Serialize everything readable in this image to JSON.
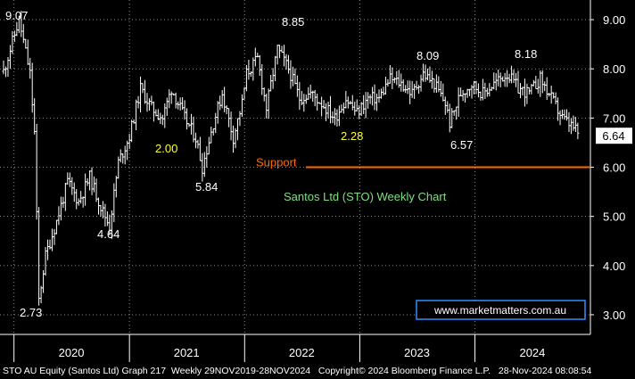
{
  "chart_data": {
    "type": "ohlc-bar",
    "title": "Santos Ltd (STO) Weekly Chart",
    "ylim": [
      2.6,
      9.4
    ],
    "y_ticks": [
      "3.00",
      "4.00",
      "5.00",
      "6.00",
      "7.00",
      "8.00",
      "9.00"
    ],
    "x_labels": [
      "2020",
      "2021",
      "2022",
      "2023",
      "2024"
    ],
    "last_price": "6.64",
    "support": {
      "label": "Support",
      "value": 6.0
    },
    "annotations": [
      {
        "label": "9.07",
        "value": 9.07,
        "date": "2020-01-17",
        "color": "#ffffff"
      },
      {
        "label": "2.73",
        "value": 2.73,
        "date": "2020-03-20",
        "color": "#ffffff"
      },
      {
        "label": "4.64",
        "value": 4.64,
        "date": "2020-10-30",
        "color": "#ffffff"
      },
      {
        "label": "2.00",
        "value": 2.0,
        "date": "2020-12-15",
        "color": "#ffff33"
      },
      {
        "label": "5.84",
        "value": 5.84,
        "date": "2021-08-20",
        "color": "#ffffff"
      },
      {
        "label": "8.85",
        "value": 8.85,
        "date": "2022-01-07",
        "color": "#ffffff"
      },
      {
        "label": "2.28",
        "value": 2.28,
        "date": "2022-10-15",
        "color": "#ffff33"
      },
      {
        "label": "8.09",
        "value": 8.09,
        "date": "2023-04-06",
        "color": "#ffffff"
      },
      {
        "label": "6.57",
        "value": 6.57,
        "date": "2023-10-13",
        "color": "#ffffff"
      },
      {
        "label": "8.18",
        "value": 8.18,
        "date": "2024-04-12",
        "color": "#ffffff"
      }
    ],
    "series": [
      {
        "values": [
          [
            "2019-11-29",
            7.95
          ],
          [
            "2020-01-17",
            9.0
          ],
          [
            "2020-02-21",
            7.9
          ],
          [
            "2020-03-06",
            6.7
          ],
          [
            "2020-03-20",
            3.3
          ],
          [
            "2020-04-10",
            4.2
          ],
          [
            "2020-05-15",
            4.9
          ],
          [
            "2020-06-19",
            5.7
          ],
          [
            "2020-07-24",
            5.3
          ],
          [
            "2020-08-28",
            5.8
          ],
          [
            "2020-10-02",
            5.2
          ],
          [
            "2020-10-30",
            4.8
          ],
          [
            "2020-11-27",
            6.1
          ],
          [
            "2020-12-31",
            6.6
          ],
          [
            "2021-02-05",
            7.6
          ],
          [
            "2021-03-12",
            7.2
          ],
          [
            "2021-04-16",
            7.0
          ],
          [
            "2021-05-14",
            7.6
          ],
          [
            "2021-06-25",
            7.0
          ],
          [
            "2021-07-30",
            6.6
          ],
          [
            "2021-08-20",
            6.0
          ],
          [
            "2021-09-24",
            6.9
          ],
          [
            "2021-10-22",
            7.5
          ],
          [
            "2021-11-26",
            6.6
          ],
          [
            "2021-12-24",
            7.3
          ],
          [
            "2022-01-07",
            7.9
          ],
          [
            "2022-02-11",
            8.2
          ],
          [
            "2022-03-11",
            7.2
          ],
          [
            "2022-04-15",
            8.4
          ],
          [
            "2022-05-20",
            8.0
          ],
          [
            "2022-06-24",
            7.4
          ],
          [
            "2022-07-29",
            7.5
          ],
          [
            "2022-09-02",
            7.3
          ],
          [
            "2022-10-14",
            7.0
          ],
          [
            "2022-11-18",
            7.4
          ],
          [
            "2022-12-23",
            7.1
          ],
          [
            "2023-01-27",
            7.4
          ],
          [
            "2023-03-03",
            7.4
          ],
          [
            "2023-04-06",
            7.8
          ],
          [
            "2023-05-12",
            7.7
          ],
          [
            "2023-06-16",
            7.5
          ],
          [
            "2023-07-21",
            7.9
          ],
          [
            "2023-08-25",
            7.7
          ],
          [
            "2023-09-29",
            7.3
          ],
          [
            "2023-10-13",
            6.9
          ],
          [
            "2023-11-17",
            7.5
          ],
          [
            "2023-12-22",
            7.7
          ],
          [
            "2024-01-26",
            7.5
          ],
          [
            "2024-03-01",
            7.7
          ],
          [
            "2024-04-12",
            7.9
          ],
          [
            "2024-05-17",
            7.6
          ],
          [
            "2024-06-21",
            7.5
          ],
          [
            "2024-07-26",
            7.8
          ],
          [
            "2024-08-30",
            7.4
          ],
          [
            "2024-10-04",
            7.0
          ],
          [
            "2024-11-08",
            6.8
          ],
          [
            "2024-11-28",
            6.64
          ]
        ]
      }
    ]
  },
  "footer": {
    "security": "STO AU Equity (Santos Ltd) Graph 217",
    "period": "Weekly 29NOV2019-28NOV2024",
    "copyright": "Copyright© 2024 Bloomberg Finance L.P.",
    "timestamp": "28-Nov-2024 08:08:54"
  },
  "watermark": "www.marketmatters.com.au",
  "colors": {
    "background": "#000000",
    "bars": "#ffffff",
    "grid": "#8a8a8a",
    "support_line": "#ff6a00",
    "title_text": "#7fe07f",
    "highlight": "#ffff33",
    "watermark_border": "#2f8fff"
  }
}
